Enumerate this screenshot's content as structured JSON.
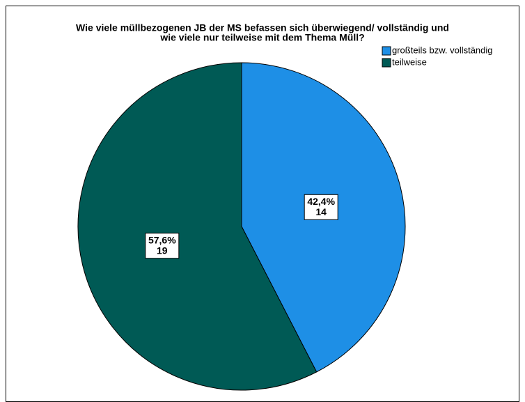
{
  "chart_data": {
    "type": "pie",
    "title": [
      "Wie viele müllbezogenen JB der MS befassen sich überwiegend/ vollständig und",
      "wie viele nur teilweise mit dem Thema Müll?"
    ],
    "categories": [
      "großteils bzw. vollständig",
      "teilweise"
    ],
    "values": [
      14,
      19
    ],
    "percents": [
      42.4,
      57.6
    ],
    "percent_labels": [
      "42,4%",
      "57,6%"
    ],
    "colors": [
      "#1e8fe6",
      "#005a55"
    ],
    "legend": "top-right"
  }
}
